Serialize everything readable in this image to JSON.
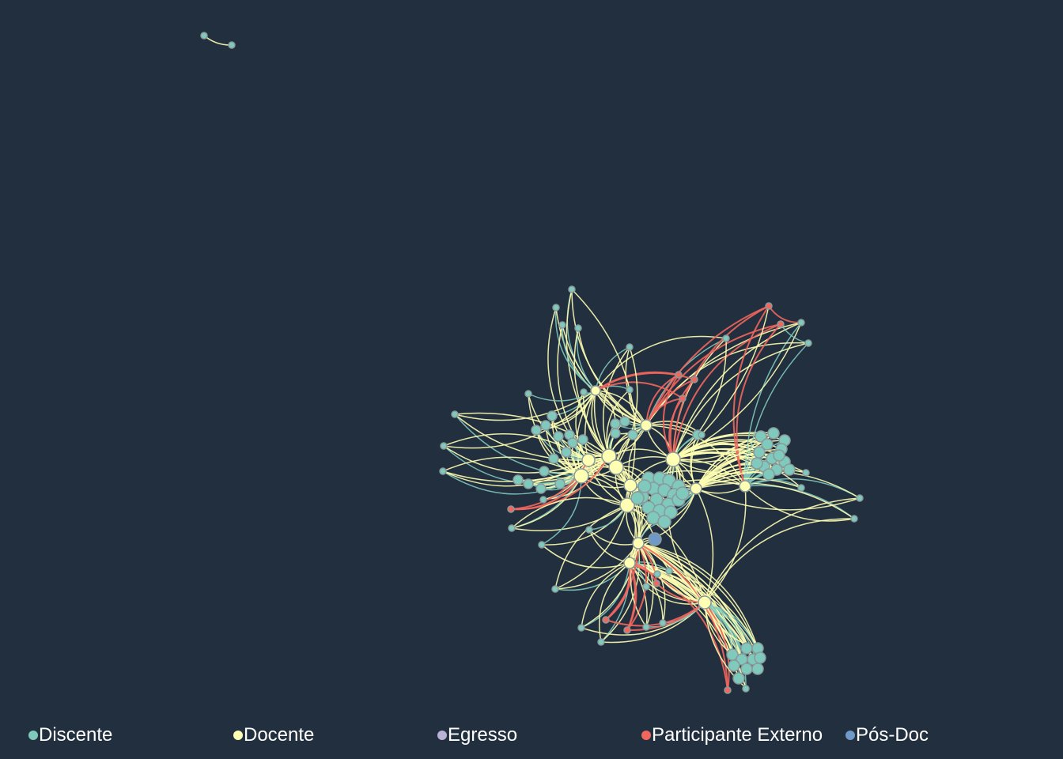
{
  "colors": {
    "background": "#222f3f",
    "edge_docente": "#ffffb3",
    "edge_discente": "#80c9bd",
    "edge_externo": "#f2675d"
  },
  "legend": [
    {
      "label": "Discente",
      "color": "#80c9bd"
    },
    {
      "label": "Docente",
      "color": "#ffffb3"
    },
    {
      "label": "Egresso",
      "color": "#b9b2d5"
    },
    {
      "label": "Participante Externo",
      "color": "#f2675d"
    },
    {
      "label": "Pós-Doc",
      "color": "#6f9ac7"
    }
  ]
}
